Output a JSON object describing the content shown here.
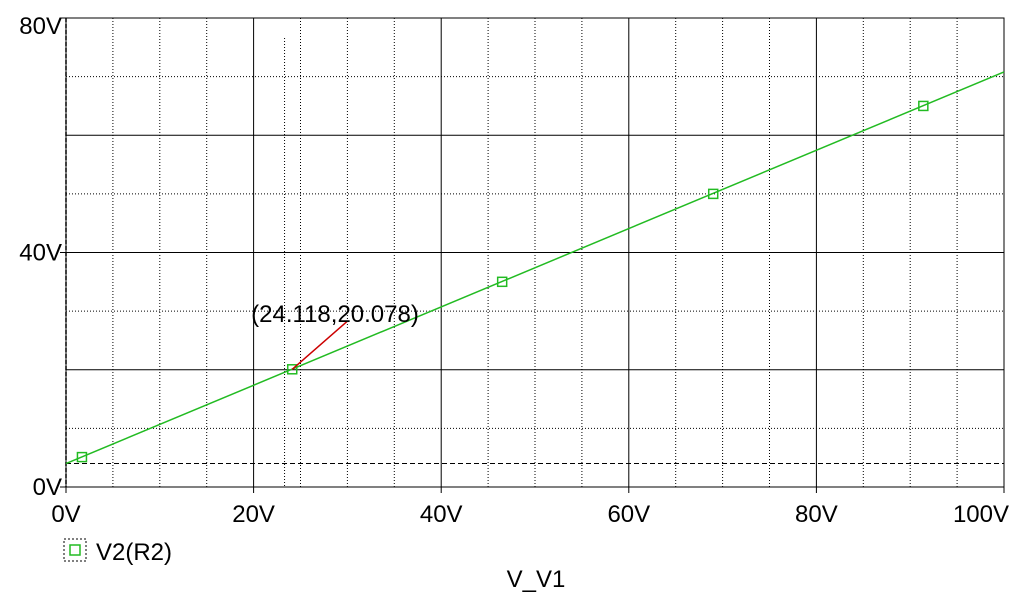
{
  "chart_data": {
    "type": "line",
    "title": "",
    "xlabel": "V_V1",
    "ylabel": "",
    "xlim": [
      0,
      100
    ],
    "ylim": [
      0,
      80
    ],
    "x_ticks": [
      "0V",
      "20V",
      "40V",
      "60V",
      "80V",
      "100V"
    ],
    "y_ticks": [
      "0V",
      "40V",
      "80V"
    ],
    "grid": "major solid, minor dotted",
    "legend_position": "bottom-left",
    "series": [
      {
        "name": "V2(R2)",
        "color": "#22bb22",
        "x": [
          0,
          100
        ],
        "y": [
          4.0,
          70.8
        ],
        "markers_x": [
          1.7,
          24.118,
          46.5,
          69.0,
          91.4
        ],
        "markers_y": [
          5.1,
          20.078,
          35.0,
          50.0,
          65.0
        ],
        "marker": "square-icon"
      }
    ],
    "reference_lines": [
      {
        "y": 4.0,
        "style": "dashed",
        "color": "#000000"
      }
    ],
    "annotations": [
      {
        "text": "(24.118,20.078)",
        "x": 24.118,
        "y": 20.078,
        "color": "#cc0000"
      }
    ]
  }
}
